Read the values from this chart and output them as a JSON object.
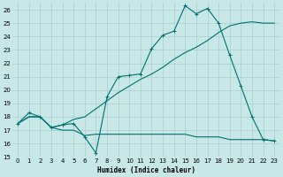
{
  "xlabel": "Humidex (Indice chaleur)",
  "xlim": [
    -0.5,
    23.5
  ],
  "ylim": [
    15,
    26.5
  ],
  "yticks": [
    15,
    16,
    17,
    18,
    19,
    20,
    21,
    22,
    23,
    24,
    25,
    26
  ],
  "xticks": [
    0,
    1,
    2,
    3,
    4,
    5,
    6,
    7,
    8,
    9,
    10,
    11,
    12,
    13,
    14,
    15,
    16,
    17,
    18,
    19,
    20,
    21,
    22,
    23
  ],
  "bg_color": "#c8e8e8",
  "grid_color": "#aacece",
  "line_color": "#007070",
  "line1_x": [
    0,
    1,
    2,
    3,
    4,
    5,
    6,
    7,
    8,
    9,
    10,
    11,
    12,
    13,
    14,
    15,
    16,
    17,
    18,
    19,
    20,
    21,
    22,
    23
  ],
  "line1_y": [
    17.5,
    18.3,
    18.0,
    17.2,
    17.4,
    17.5,
    16.5,
    15.3,
    19.5,
    21.0,
    21.1,
    21.2,
    23.1,
    24.1,
    24.4,
    26.3,
    25.7,
    26.1,
    25.0,
    22.6,
    20.3,
    18.0,
    16.3,
    16.2
  ],
  "line2_x": [
    0,
    1,
    2,
    3,
    4,
    5,
    6,
    7,
    8,
    9,
    10,
    11,
    12,
    13,
    14,
    15,
    16,
    17,
    18,
    19,
    20,
    21,
    22,
    23
  ],
  "line2_y": [
    17.5,
    18.0,
    18.0,
    17.2,
    17.0,
    17.0,
    16.6,
    16.7,
    16.7,
    16.7,
    16.7,
    16.7,
    16.7,
    16.7,
    16.7,
    16.7,
    16.5,
    16.5,
    16.5,
    16.3,
    16.3,
    16.3,
    16.3,
    16.2
  ],
  "line3_x": [
    0,
    1,
    2,
    3,
    4,
    5,
    6,
    7,
    8,
    9,
    10,
    11,
    12,
    13,
    14,
    15,
    16,
    17,
    18,
    19,
    20,
    21,
    22,
    23
  ],
  "line3_y": [
    17.5,
    18.0,
    18.0,
    17.2,
    17.4,
    17.8,
    18.0,
    18.6,
    19.2,
    19.8,
    20.3,
    20.8,
    21.2,
    21.7,
    22.3,
    22.8,
    23.2,
    23.7,
    24.3,
    24.8,
    25.0,
    25.1,
    25.0,
    25.0
  ]
}
